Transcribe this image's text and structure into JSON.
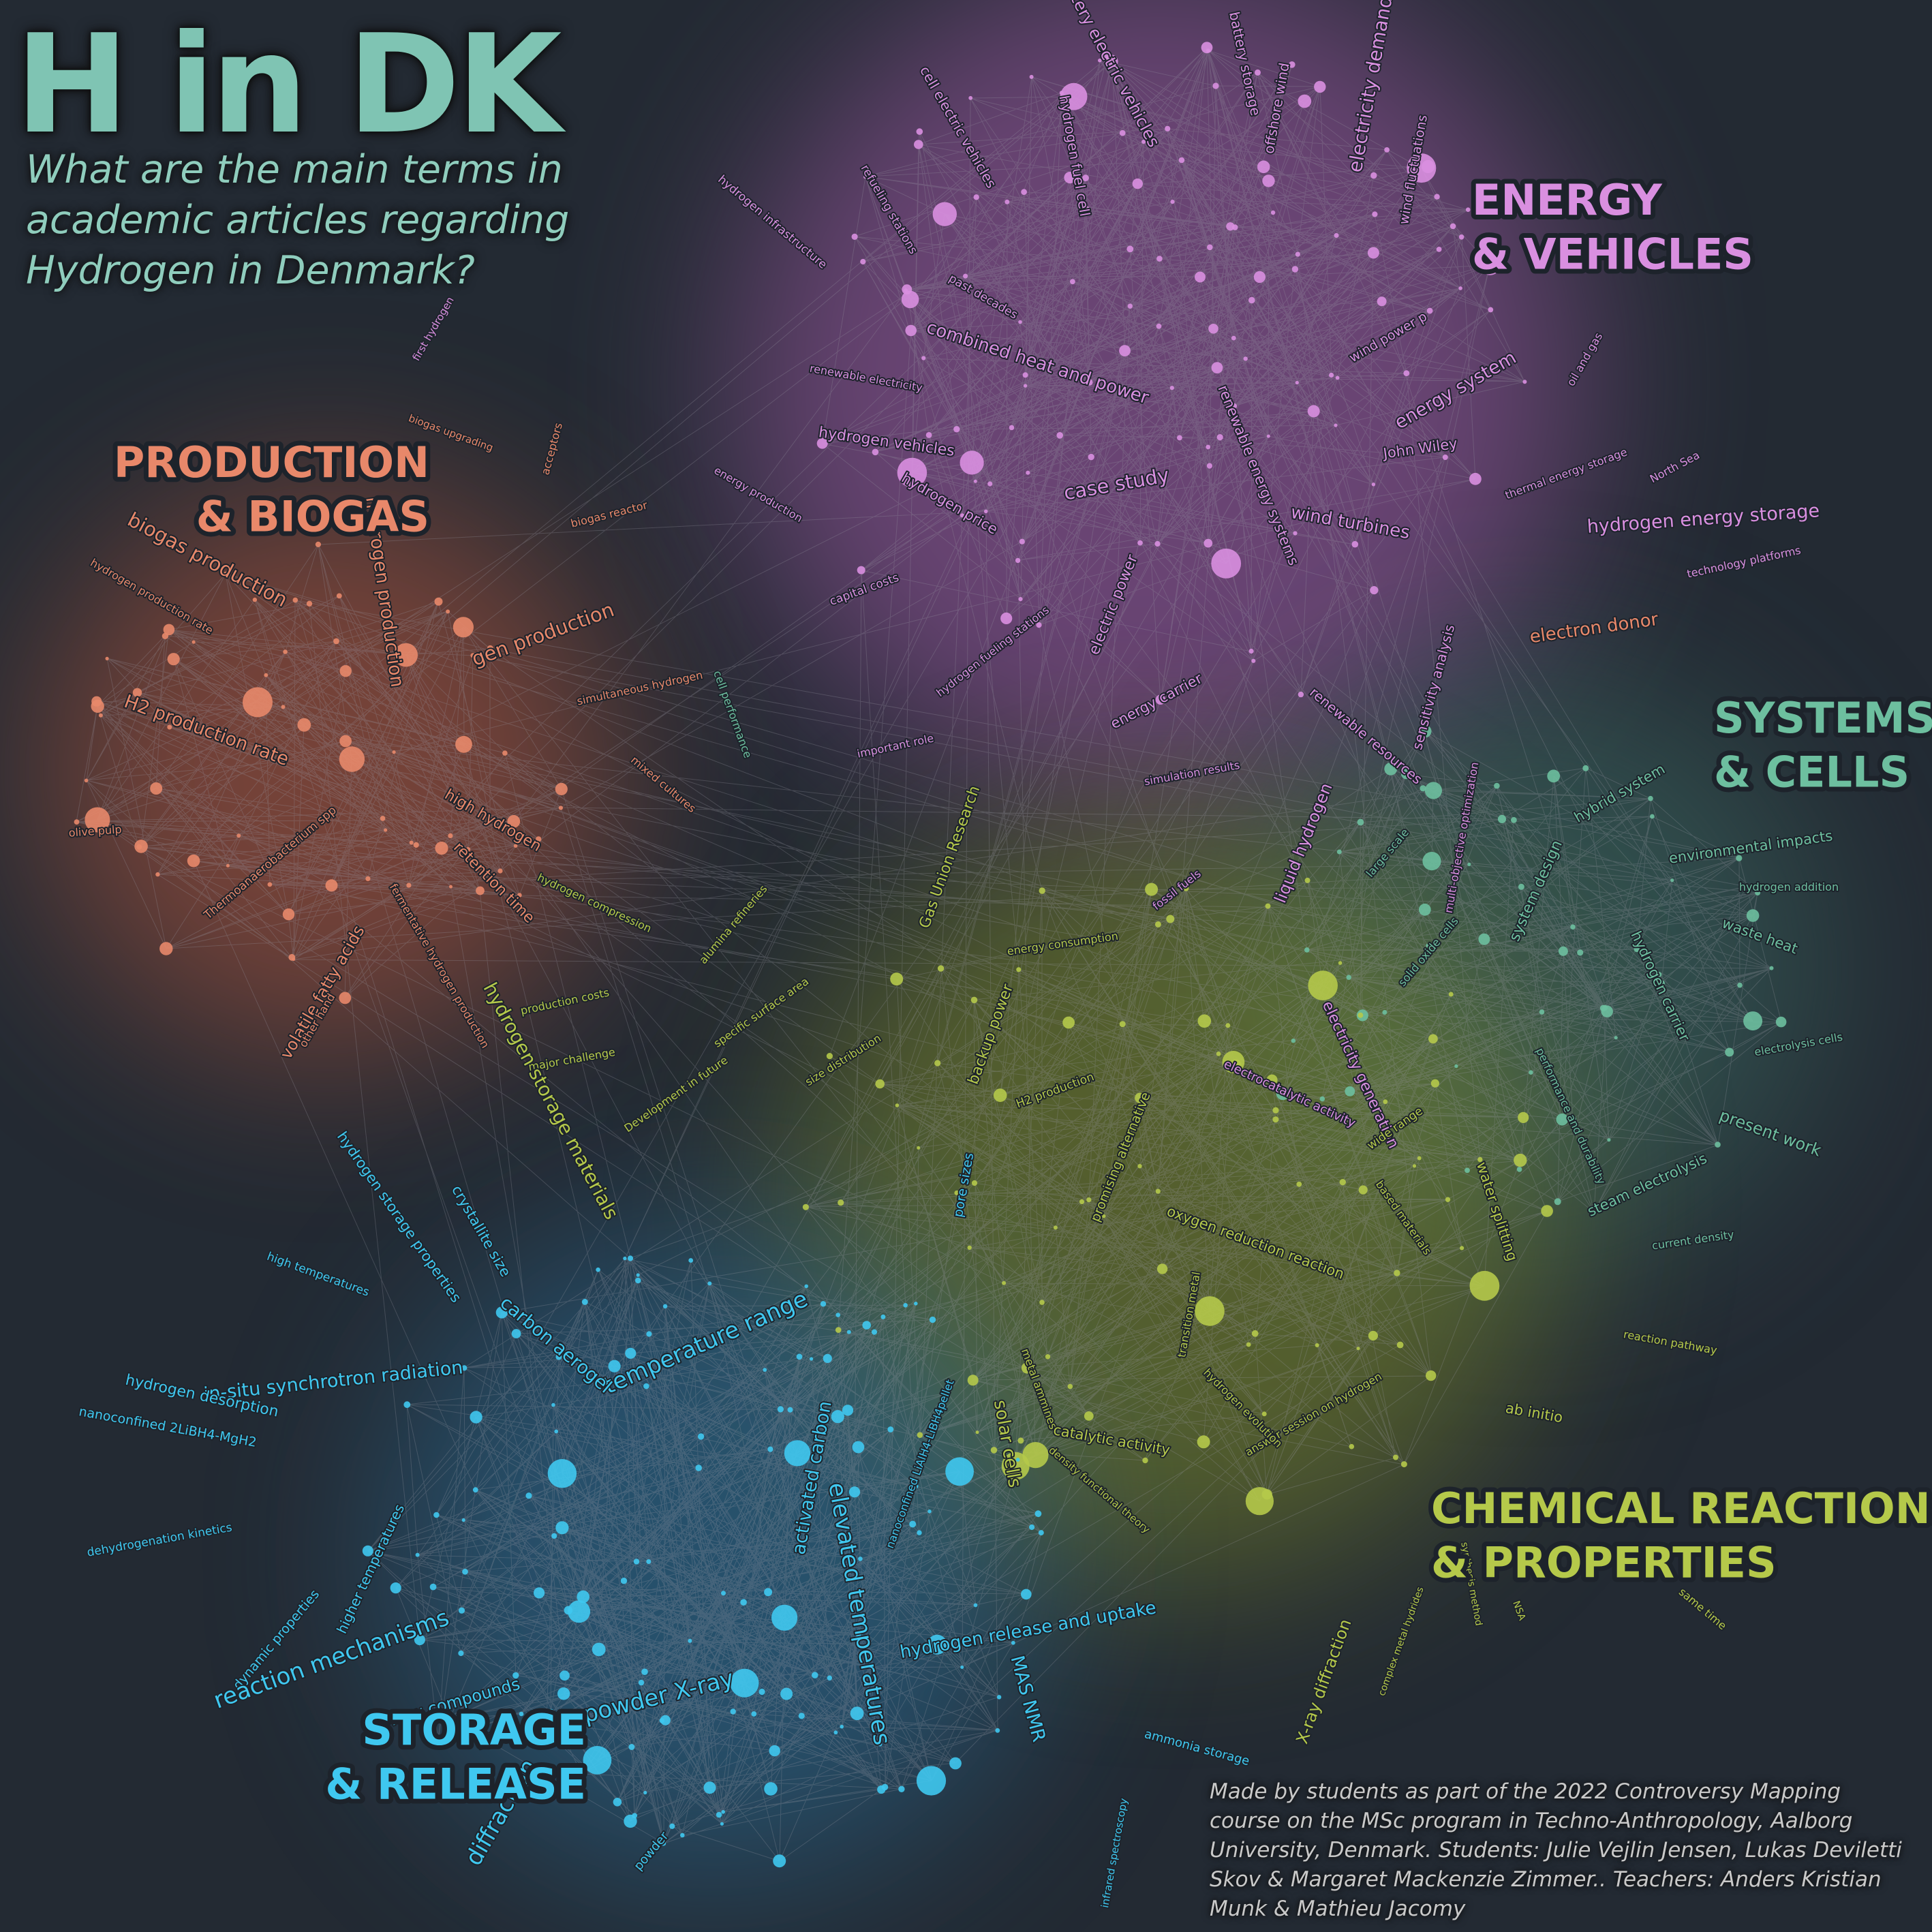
{
  "title": "H in DK",
  "subtitle": "What are the main terms in academic articles regarding Hydrogen in Denmark?",
  "credits": "Made by students as part of the 2022 Controversy Mapping course on the MSc program in Techno-Anthropology, Aalborg University, Denmark. Students: Julie Vejlin Jensen, Lukas Deviletti Skov & Margaret Mackenzie Zimmer.. Teachers: Anders Kristian Munk & Mathieu Jacomy",
  "colors": {
    "background": "#232a33",
    "energy": "#d98fe0",
    "production": "#e8886a",
    "systems": "#6dbf9f",
    "chemical": "#b5c94a",
    "storage": "#3fc8f0",
    "edges": "#9a9aa6"
  },
  "clusters": [
    {
      "id": "energy",
      "line1": "ENERGY",
      "line2": "& VEHICLES"
    },
    {
      "id": "production",
      "line1": "PRODUCTION",
      "line2": "& BIOGAS"
    },
    {
      "id": "systems",
      "line1": "SYSTEMS",
      "line2": "& CELLS"
    },
    {
      "id": "chemical",
      "line1": "CHEMICAL REACTIONS",
      "line2": "& PROPERTIES"
    },
    {
      "id": "storage",
      "line1": "STORAGE",
      "line2": "& RELEASE"
    }
  ],
  "terms": [
    {
      "t": "battery electric vehicles",
      "c": "energy"
    },
    {
      "t": "battery storage",
      "c": "energy"
    },
    {
      "t": "offshore wind",
      "c": "energy"
    },
    {
      "t": "electricity demand",
      "c": "energy"
    },
    {
      "t": "wind fluctuations",
      "c": "energy"
    },
    {
      "t": "cell electric vehicles",
      "c": "energy"
    },
    {
      "t": "hydrogen fuel cell",
      "c": "energy"
    },
    {
      "t": "refueling stations",
      "c": "energy"
    },
    {
      "t": "hydrogen infrastructure",
      "c": "energy"
    },
    {
      "t": "past decades",
      "c": "energy"
    },
    {
      "t": "wind power p",
      "c": "energy"
    },
    {
      "t": "combined heat and power",
      "c": "energy"
    },
    {
      "t": "energy system",
      "c": "energy"
    },
    {
      "t": "oil and gas",
      "c": "energy"
    },
    {
      "t": "renewable electricity",
      "c": "energy"
    },
    {
      "t": "hydrogen vehicles",
      "c": "energy"
    },
    {
      "t": "John Wiley",
      "c": "energy"
    },
    {
      "t": "thermal energy storage",
      "c": "energy"
    },
    {
      "t": "North Sea",
      "c": "energy"
    },
    {
      "t": "energy production",
      "c": "energy"
    },
    {
      "t": "case study",
      "c": "energy"
    },
    {
      "t": "hydrogen price",
      "c": "energy"
    },
    {
      "t": "renewable energy systems",
      "c": "energy"
    },
    {
      "t": "wind turbines",
      "c": "energy"
    },
    {
      "t": "hydrogen energy storage",
      "c": "energy"
    },
    {
      "t": "technology platforms",
      "c": "energy"
    },
    {
      "t": "capital costs",
      "c": "energy"
    },
    {
      "t": "electric power",
      "c": "energy"
    },
    {
      "t": "hydrogen fueling stations",
      "c": "energy"
    },
    {
      "t": "sensitivity analysis",
      "c": "energy"
    },
    {
      "t": "important role",
      "c": "energy"
    },
    {
      "t": "energy carrier",
      "c": "energy"
    },
    {
      "t": "renewable resources",
      "c": "energy"
    },
    {
      "t": "simulation results",
      "c": "energy"
    },
    {
      "t": "fossil fuels",
      "c": "energy"
    },
    {
      "t": "liquid hydrogen",
      "c": "energy"
    },
    {
      "t": "multi-objective optimization",
      "c": "energy"
    },
    {
      "t": "electricity generation",
      "c": "energy"
    },
    {
      "t": "electrocatalytic activity",
      "c": "energy"
    },
    {
      "t": "first hydrogen",
      "c": "energy"
    },
    {
      "t": "acceptors",
      "c": "production"
    },
    {
      "t": "biogas upgrading",
      "c": "production"
    },
    {
      "t": "biogas reactor",
      "c": "production"
    },
    {
      "t": "biogas production",
      "c": "production"
    },
    {
      "t": "hydrogen production",
      "c": "production"
    },
    {
      "t": "gen production",
      "c": "production"
    },
    {
      "t": "hydrogen production rate",
      "c": "production"
    },
    {
      "t": "simultaneous hydrogen",
      "c": "production"
    },
    {
      "t": "H2 production rate",
      "c": "production"
    },
    {
      "t": "mixed cultures",
      "c": "production"
    },
    {
      "t": "olive pulp",
      "c": "production"
    },
    {
      "t": "Thermoanaerobacterium spp",
      "c": "production"
    },
    {
      "t": "high hydrogen",
      "c": "production"
    },
    {
      "t": "retention time",
      "c": "production"
    },
    {
      "t": "volatile fatty acids",
      "c": "production"
    },
    {
      "t": "fermentative hydrogen production",
      "c": "production"
    },
    {
      "t": "other hand",
      "c": "production"
    },
    {
      "t": "electron donor",
      "c": "production"
    },
    {
      "t": "hybrid system",
      "c": "systems"
    },
    {
      "t": "system design",
      "c": "systems"
    },
    {
      "t": "environmental impacts",
      "c": "systems"
    },
    {
      "t": "hydrogen addition",
      "c": "systems"
    },
    {
      "t": "large scale",
      "c": "systems"
    },
    {
      "t": "waste heat",
      "c": "systems"
    },
    {
      "t": "solid oxide cells",
      "c": "systems"
    },
    {
      "t": "hydrogen carrier",
      "c": "systems"
    },
    {
      "t": "electrolysis cells",
      "c": "systems"
    },
    {
      "t": "performance and durability",
      "c": "systems"
    },
    {
      "t": "present work",
      "c": "systems"
    },
    {
      "t": "steam electrolysis",
      "c": "systems"
    },
    {
      "t": "current density",
      "c": "systems"
    },
    {
      "t": "cell performance",
      "c": "systems"
    },
    {
      "t": "Gas Union Research",
      "c": "chemical"
    },
    {
      "t": "hydrogen compression",
      "c": "chemical"
    },
    {
      "t": "alumina refineries",
      "c": "chemical"
    },
    {
      "t": "energy consumption",
      "c": "chemical"
    },
    {
      "t": "production costs",
      "c": "chemical"
    },
    {
      "t": "specific surface area",
      "c": "chemical"
    },
    {
      "t": "major challenge",
      "c": "chemical"
    },
    {
      "t": "size distribution",
      "c": "chemical"
    },
    {
      "t": "backup power",
      "c": "chemical"
    },
    {
      "t": "H2 production",
      "c": "chemical"
    },
    {
      "t": "Development in future",
      "c": "chemical"
    },
    {
      "t": "wide range",
      "c": "chemical"
    },
    {
      "t": "promising alternative",
      "c": "chemical"
    },
    {
      "t": "based materials",
      "c": "chemical"
    },
    {
      "t": "water splitting",
      "c": "chemical"
    },
    {
      "t": "oxygen reduction reaction",
      "c": "chemical"
    },
    {
      "t": "transition metal",
      "c": "chemical"
    },
    {
      "t": "metal ammines",
      "c": "chemical"
    },
    {
      "t": "reaction pathway",
      "c": "chemical"
    },
    {
      "t": "answer session on hydrogen",
      "c": "chemical"
    },
    {
      "t": "hydrogen evolution",
      "c": "chemical"
    },
    {
      "t": "ab initio",
      "c": "chemical"
    },
    {
      "t": "catalytic activity",
      "c": "chemical"
    },
    {
      "t": "X-ray diffraction",
      "c": "chemical"
    },
    {
      "t": "density functional theory",
      "c": "chemical"
    },
    {
      "t": "complex metal hydrides",
      "c": "chemical"
    },
    {
      "t": "synthesis method",
      "c": "chemical"
    },
    {
      "t": "NSA",
      "c": "chemical"
    },
    {
      "t": "same time",
      "c": "chemical"
    },
    {
      "t": "solar cells",
      "c": "chemical"
    },
    {
      "t": "hydrogen storage materials",
      "c": "chemical"
    },
    {
      "t": "temperature range",
      "c": "storage"
    },
    {
      "t": "hydrogen storage properties",
      "c": "storage"
    },
    {
      "t": "crystallite size",
      "c": "storage"
    },
    {
      "t": "pore sizes",
      "c": "storage"
    },
    {
      "t": "high temperatures",
      "c": "storage"
    },
    {
      "t": "activated carbon",
      "c": "storage"
    },
    {
      "t": "in-situ synchrotron radiation",
      "c": "storage"
    },
    {
      "t": "carbon aerogel",
      "c": "storage"
    },
    {
      "t": "hydrogen desorption",
      "c": "storage"
    },
    {
      "t": "nanoconfined 2LiBH4-MgH2",
      "c": "storage"
    },
    {
      "t": "nanoconfined LiAlH4-LiBH4pellet",
      "c": "storage"
    },
    {
      "t": "higher temperatures",
      "c": "storage"
    },
    {
      "t": "dehydrogenation kinetics",
      "c": "storage"
    },
    {
      "t": "dynamic properties",
      "c": "storage"
    },
    {
      "t": "reaction mechanisms",
      "c": "storage"
    },
    {
      "t": "hydrogen release and uptake",
      "c": "storage"
    },
    {
      "t": "new compounds",
      "c": "storage"
    },
    {
      "t": "elevated temperatures",
      "c": "storage"
    },
    {
      "t": "radiation powder X-ray",
      "c": "storage"
    },
    {
      "t": "diffraction",
      "c": "storage"
    },
    {
      "t": "powder",
      "c": "storage"
    },
    {
      "t": "MAS NMR",
      "c": "storage"
    },
    {
      "t": "infrared spectroscopy",
      "c": "storage"
    },
    {
      "t": "ammonia storage",
      "c": "storage"
    },
    {
      "t": "ammo",
      "c": "storage"
    }
  ]
}
